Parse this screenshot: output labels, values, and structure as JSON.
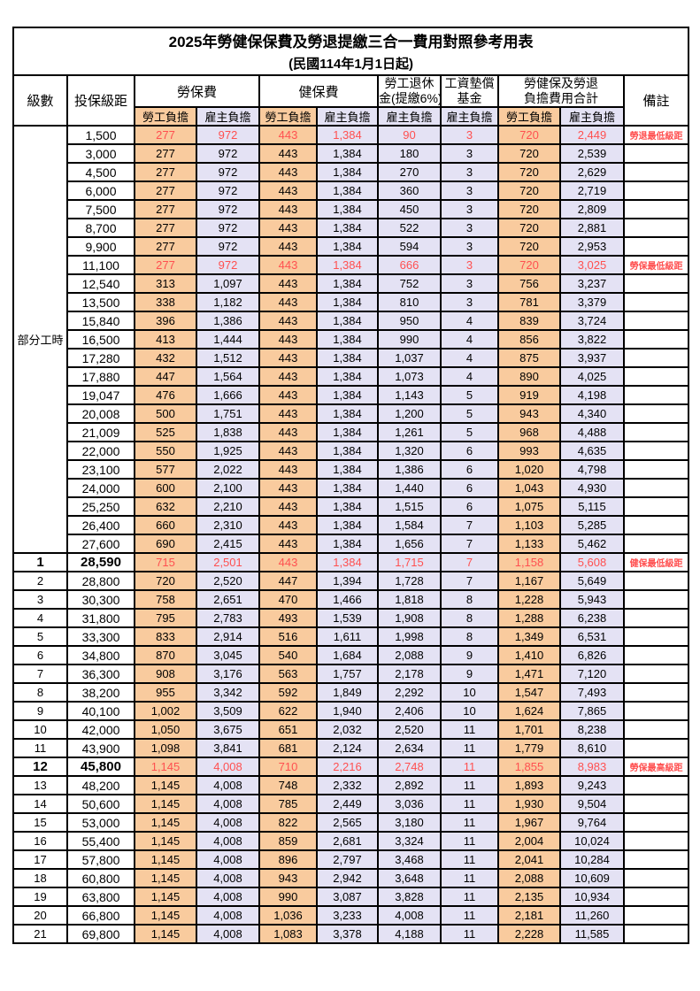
{
  "title": "2025年勞健保保費及勞退提繳三合一費用對照參考用表",
  "subtitle": "(民國114年1月1日起)",
  "header": {
    "level": "級數",
    "salary": "投保級距",
    "labor": "勞保費",
    "health": "健保費",
    "pension_line1": "勞工退休",
    "pension_line2": "金(提繳6%)",
    "wage_fund_line1": "工資墊償",
    "wage_fund_line2": "基金",
    "total_line1": "勞健保及勞退",
    "total_line2": "負擔費用合計",
    "remark": "備註",
    "employee": "勞工負擔",
    "employer": "雇主負擔"
  },
  "part_time_label": "部分工時",
  "colors": {
    "employee_bg": "#F9CB9E",
    "employer_bg": "#E4E2F4",
    "highlight_red": "#FF5050",
    "border": "#000000",
    "page_bg": "#FFFFFF"
  },
  "column_pattern": [
    "emp",
    "er",
    "emp",
    "er",
    "er",
    "er",
    "emp",
    "er"
  ],
  "rows": [
    {
      "level": "",
      "salary": "1,500",
      "values": [
        "277",
        "972",
        "443",
        "1,384",
        "90",
        "3",
        "720",
        "2,449"
      ],
      "remark": "勞退最低級距",
      "highlight": true,
      "bold": false
    },
    {
      "level": "",
      "salary": "3,000",
      "values": [
        "277",
        "972",
        "443",
        "1,384",
        "180",
        "3",
        "720",
        "2,539"
      ],
      "remark": "",
      "highlight": false,
      "bold": false
    },
    {
      "level": "",
      "salary": "4,500",
      "values": [
        "277",
        "972",
        "443",
        "1,384",
        "270",
        "3",
        "720",
        "2,629"
      ],
      "remark": "",
      "highlight": false,
      "bold": false
    },
    {
      "level": "",
      "salary": "6,000",
      "values": [
        "277",
        "972",
        "443",
        "1,384",
        "360",
        "3",
        "720",
        "2,719"
      ],
      "remark": "",
      "highlight": false,
      "bold": false
    },
    {
      "level": "",
      "salary": "7,500",
      "values": [
        "277",
        "972",
        "443",
        "1,384",
        "450",
        "3",
        "720",
        "2,809"
      ],
      "remark": "",
      "highlight": false,
      "bold": false
    },
    {
      "level": "",
      "salary": "8,700",
      "values": [
        "277",
        "972",
        "443",
        "1,384",
        "522",
        "3",
        "720",
        "2,881"
      ],
      "remark": "",
      "highlight": false,
      "bold": false
    },
    {
      "level": "",
      "salary": "9,900",
      "values": [
        "277",
        "972",
        "443",
        "1,384",
        "594",
        "3",
        "720",
        "2,953"
      ],
      "remark": "",
      "highlight": false,
      "bold": false
    },
    {
      "level": "",
      "salary": "11,100",
      "values": [
        "277",
        "972",
        "443",
        "1,384",
        "666",
        "3",
        "720",
        "3,025"
      ],
      "remark": "勞保最低級距",
      "highlight": true,
      "bold": false
    },
    {
      "level": "",
      "salary": "12,540",
      "values": [
        "313",
        "1,097",
        "443",
        "1,384",
        "752",
        "3",
        "756",
        "3,237"
      ],
      "remark": "",
      "highlight": false,
      "bold": false
    },
    {
      "level": "",
      "salary": "13,500",
      "values": [
        "338",
        "1,182",
        "443",
        "1,384",
        "810",
        "3",
        "781",
        "3,379"
      ],
      "remark": "",
      "highlight": false,
      "bold": false
    },
    {
      "level": "",
      "salary": "15,840",
      "values": [
        "396",
        "1,386",
        "443",
        "1,384",
        "950",
        "4",
        "839",
        "3,724"
      ],
      "remark": "",
      "highlight": false,
      "bold": false
    },
    {
      "level": "",
      "salary": "16,500",
      "values": [
        "413",
        "1,444",
        "443",
        "1,384",
        "990",
        "4",
        "856",
        "3,822"
      ],
      "remark": "",
      "highlight": false,
      "bold": false
    },
    {
      "level": "",
      "salary": "17,280",
      "values": [
        "432",
        "1,512",
        "443",
        "1,384",
        "1,037",
        "4",
        "875",
        "3,937"
      ],
      "remark": "",
      "highlight": false,
      "bold": false
    },
    {
      "level": "",
      "salary": "17,880",
      "values": [
        "447",
        "1,564",
        "443",
        "1,384",
        "1,073",
        "4",
        "890",
        "4,025"
      ],
      "remark": "",
      "highlight": false,
      "bold": false
    },
    {
      "level": "",
      "salary": "19,047",
      "values": [
        "476",
        "1,666",
        "443",
        "1,384",
        "1,143",
        "5",
        "919",
        "4,198"
      ],
      "remark": "",
      "highlight": false,
      "bold": false
    },
    {
      "level": "",
      "salary": "20,008",
      "values": [
        "500",
        "1,751",
        "443",
        "1,384",
        "1,200",
        "5",
        "943",
        "4,340"
      ],
      "remark": "",
      "highlight": false,
      "bold": false
    },
    {
      "level": "",
      "salary": "21,009",
      "values": [
        "525",
        "1,838",
        "443",
        "1,384",
        "1,261",
        "5",
        "968",
        "4,488"
      ],
      "remark": "",
      "highlight": false,
      "bold": false
    },
    {
      "level": "",
      "salary": "22,000",
      "values": [
        "550",
        "1,925",
        "443",
        "1,384",
        "1,320",
        "6",
        "993",
        "4,635"
      ],
      "remark": "",
      "highlight": false,
      "bold": false
    },
    {
      "level": "",
      "salary": "23,100",
      "values": [
        "577",
        "2,022",
        "443",
        "1,384",
        "1,386",
        "6",
        "1,020",
        "4,798"
      ],
      "remark": "",
      "highlight": false,
      "bold": false
    },
    {
      "level": "",
      "salary": "24,000",
      "values": [
        "600",
        "2,100",
        "443",
        "1,384",
        "1,440",
        "6",
        "1,043",
        "4,930"
      ],
      "remark": "",
      "highlight": false,
      "bold": false
    },
    {
      "level": "",
      "salary": "25,250",
      "values": [
        "632",
        "2,210",
        "443",
        "1,384",
        "1,515",
        "6",
        "1,075",
        "5,115"
      ],
      "remark": "",
      "highlight": false,
      "bold": false
    },
    {
      "level": "",
      "salary": "26,400",
      "values": [
        "660",
        "2,310",
        "443",
        "1,384",
        "1,584",
        "7",
        "1,103",
        "5,285"
      ],
      "remark": "",
      "highlight": false,
      "bold": false
    },
    {
      "level": "",
      "salary": "27,600",
      "values": [
        "690",
        "2,415",
        "443",
        "1,384",
        "1,656",
        "7",
        "1,133",
        "5,462"
      ],
      "remark": "",
      "highlight": false,
      "bold": false
    },
    {
      "level": "1",
      "salary": "28,590",
      "values": [
        "715",
        "2,501",
        "443",
        "1,384",
        "1,715",
        "7",
        "1,158",
        "5,608"
      ],
      "remark": "健保最低級距",
      "highlight": true,
      "bold": true
    },
    {
      "level": "2",
      "salary": "28,800",
      "values": [
        "720",
        "2,520",
        "447",
        "1,394",
        "1,728",
        "7",
        "1,167",
        "5,649"
      ],
      "remark": "",
      "highlight": false,
      "bold": false
    },
    {
      "level": "3",
      "salary": "30,300",
      "values": [
        "758",
        "2,651",
        "470",
        "1,466",
        "1,818",
        "8",
        "1,228",
        "5,943"
      ],
      "remark": "",
      "highlight": false,
      "bold": false
    },
    {
      "level": "4",
      "salary": "31,800",
      "values": [
        "795",
        "2,783",
        "493",
        "1,539",
        "1,908",
        "8",
        "1,288",
        "6,238"
      ],
      "remark": "",
      "highlight": false,
      "bold": false
    },
    {
      "level": "5",
      "salary": "33,300",
      "values": [
        "833",
        "2,914",
        "516",
        "1,611",
        "1,998",
        "8",
        "1,349",
        "6,531"
      ],
      "remark": "",
      "highlight": false,
      "bold": false
    },
    {
      "level": "6",
      "salary": "34,800",
      "values": [
        "870",
        "3,045",
        "540",
        "1,684",
        "2,088",
        "9",
        "1,410",
        "6,826"
      ],
      "remark": "",
      "highlight": false,
      "bold": false
    },
    {
      "level": "7",
      "salary": "36,300",
      "values": [
        "908",
        "3,176",
        "563",
        "1,757",
        "2,178",
        "9",
        "1,471",
        "7,120"
      ],
      "remark": "",
      "highlight": false,
      "bold": false
    },
    {
      "level": "8",
      "salary": "38,200",
      "values": [
        "955",
        "3,342",
        "592",
        "1,849",
        "2,292",
        "10",
        "1,547",
        "7,493"
      ],
      "remark": "",
      "highlight": false,
      "bold": false
    },
    {
      "level": "9",
      "salary": "40,100",
      "values": [
        "1,002",
        "3,509",
        "622",
        "1,940",
        "2,406",
        "10",
        "1,624",
        "7,865"
      ],
      "remark": "",
      "highlight": false,
      "bold": false
    },
    {
      "level": "10",
      "salary": "42,000",
      "values": [
        "1,050",
        "3,675",
        "651",
        "2,032",
        "2,520",
        "11",
        "1,701",
        "8,238"
      ],
      "remark": "",
      "highlight": false,
      "bold": false
    },
    {
      "level": "11",
      "salary": "43,900",
      "values": [
        "1,098",
        "3,841",
        "681",
        "2,124",
        "2,634",
        "11",
        "1,779",
        "8,610"
      ],
      "remark": "",
      "highlight": false,
      "bold": false
    },
    {
      "level": "12",
      "salary": "45,800",
      "values": [
        "1,145",
        "4,008",
        "710",
        "2,216",
        "2,748",
        "11",
        "1,855",
        "8,983"
      ],
      "remark": "勞保最高級距",
      "highlight": true,
      "bold": true
    },
    {
      "level": "13",
      "salary": "48,200",
      "values": [
        "1,145",
        "4,008",
        "748",
        "2,332",
        "2,892",
        "11",
        "1,893",
        "9,243"
      ],
      "remark": "",
      "highlight": false,
      "bold": false
    },
    {
      "level": "14",
      "salary": "50,600",
      "values": [
        "1,145",
        "4,008",
        "785",
        "2,449",
        "3,036",
        "11",
        "1,930",
        "9,504"
      ],
      "remark": "",
      "highlight": false,
      "bold": false
    },
    {
      "level": "15",
      "salary": "53,000",
      "values": [
        "1,145",
        "4,008",
        "822",
        "2,565",
        "3,180",
        "11",
        "1,967",
        "9,764"
      ],
      "remark": "",
      "highlight": false,
      "bold": false
    },
    {
      "level": "16",
      "salary": "55,400",
      "values": [
        "1,145",
        "4,008",
        "859",
        "2,681",
        "3,324",
        "11",
        "2,004",
        "10,024"
      ],
      "remark": "",
      "highlight": false,
      "bold": false
    },
    {
      "level": "17",
      "salary": "57,800",
      "values": [
        "1,145",
        "4,008",
        "896",
        "2,797",
        "3,468",
        "11",
        "2,041",
        "10,284"
      ],
      "remark": "",
      "highlight": false,
      "bold": false
    },
    {
      "level": "18",
      "salary": "60,800",
      "values": [
        "1,145",
        "4,008",
        "943",
        "2,942",
        "3,648",
        "11",
        "2,088",
        "10,609"
      ],
      "remark": "",
      "highlight": false,
      "bold": false
    },
    {
      "level": "19",
      "salary": "63,800",
      "values": [
        "1,145",
        "4,008",
        "990",
        "3,087",
        "3,828",
        "11",
        "2,135",
        "10,934"
      ],
      "remark": "",
      "highlight": false,
      "bold": false
    },
    {
      "level": "20",
      "salary": "66,800",
      "values": [
        "1,145",
        "4,008",
        "1,036",
        "3,233",
        "4,008",
        "11",
        "2,181",
        "11,260"
      ],
      "remark": "",
      "highlight": false,
      "bold": false
    },
    {
      "level": "21",
      "salary": "69,800",
      "values": [
        "1,145",
        "4,008",
        "1,083",
        "3,378",
        "4,188",
        "11",
        "2,228",
        "11,585"
      ],
      "remark": "",
      "highlight": false,
      "bold": false
    }
  ]
}
